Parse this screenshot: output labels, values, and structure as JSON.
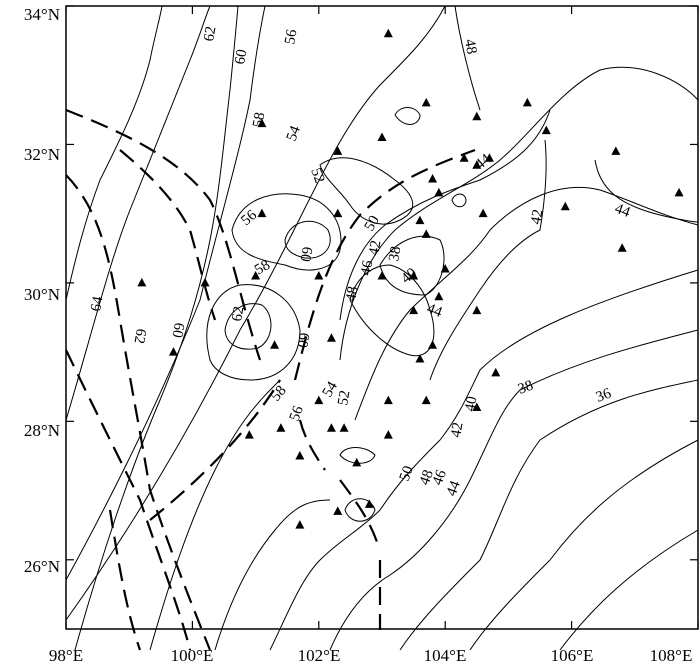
{
  "map": {
    "axes": {
      "x_ticks": [
        "98°E",
        "100°E",
        "102°E",
        "104°E",
        "106°E",
        "108°E"
      ],
      "y_ticks": [
        "34°N",
        "32°N",
        "30°N",
        "28°N",
        "26°N"
      ],
      "xlim": [
        98,
        108
      ],
      "ylim": [
        25,
        34
      ]
    },
    "contour_values": {
      "c62_top": "62",
      "c60_top": "60",
      "c56_top": "56",
      "c58_mid": "58",
      "c54": "54",
      "c52_top": "52",
      "c56_west": "56",
      "c60_w": "60",
      "c58_w": "58",
      "c62_w": "62",
      "c60_sw": "60",
      "c64": "64",
      "c62_far": "62",
      "c60_far": "60",
      "c48_top": "48",
      "c44_ne": "44",
      "c44_e": "44",
      "c42_e": "42",
      "c50_c": "50",
      "c46_c": "46",
      "c42_c": "42",
      "c38_c": "38",
      "c48_c": "48",
      "c40_c": "40",
      "c44_c": "44",
      "c58_s": "58",
      "c56_s": "56",
      "c54_s": "54",
      "c52_s": "52",
      "c50_s": "50",
      "c48_s": "48",
      "c46_s": "46",
      "c44_s": "44",
      "c42_s": "42",
      "c40_s": "40",
      "c38_se": "38",
      "c36_se": "36"
    },
    "stations_lonlat": [
      [
        103.1,
        33.6
      ],
      [
        103.7,
        32.6
      ],
      [
        103.0,
        32.1
      ],
      [
        104.5,
        32.4
      ],
      [
        105.3,
        32.6
      ],
      [
        105.6,
        32.2
      ],
      [
        104.3,
        31.8
      ],
      [
        104.5,
        31.7
      ],
      [
        104.7,
        31.8
      ],
      [
        103.8,
        31.5
      ],
      [
        103.9,
        31.3
      ],
      [
        101.1,
        32.3
      ],
      [
        102.3,
        31.9
      ],
      [
        106.7,
        31.9
      ],
      [
        107.7,
        31.3
      ],
      [
        104.6,
        31.0
      ],
      [
        105.9,
        31.1
      ],
      [
        103.6,
        30.9
      ],
      [
        103.7,
        30.7
      ],
      [
        101.1,
        31.0
      ],
      [
        102.3,
        31.0
      ],
      [
        104.0,
        30.2
      ],
      [
        103.5,
        30.1
      ],
      [
        102.0,
        30.1
      ],
      [
        103.0,
        30.1
      ],
      [
        106.8,
        30.5
      ],
      [
        99.2,
        30.0
      ],
      [
        100.2,
        30.0
      ],
      [
        101.0,
        30.1
      ],
      [
        103.9,
        29.8
      ],
      [
        104.5,
        29.6
      ],
      [
        103.5,
        29.6
      ],
      [
        103.8,
        29.1
      ],
      [
        103.6,
        28.9
      ],
      [
        99.7,
        29.0
      ],
      [
        101.3,
        29.1
      ],
      [
        102.2,
        29.2
      ],
      [
        104.8,
        28.7
      ],
      [
        103.1,
        28.3
      ],
      [
        103.7,
        28.3
      ],
      [
        102.0,
        28.3
      ],
      [
        104.5,
        28.2
      ],
      [
        100.9,
        27.8
      ],
      [
        101.4,
        27.9
      ],
      [
        102.2,
        27.9
      ],
      [
        102.4,
        27.9
      ],
      [
        103.1,
        27.8
      ],
      [
        101.7,
        27.5
      ],
      [
        102.6,
        27.4
      ],
      [
        102.8,
        26.8
      ],
      [
        102.3,
        26.7
      ],
      [
        101.7,
        26.5
      ]
    ]
  }
}
